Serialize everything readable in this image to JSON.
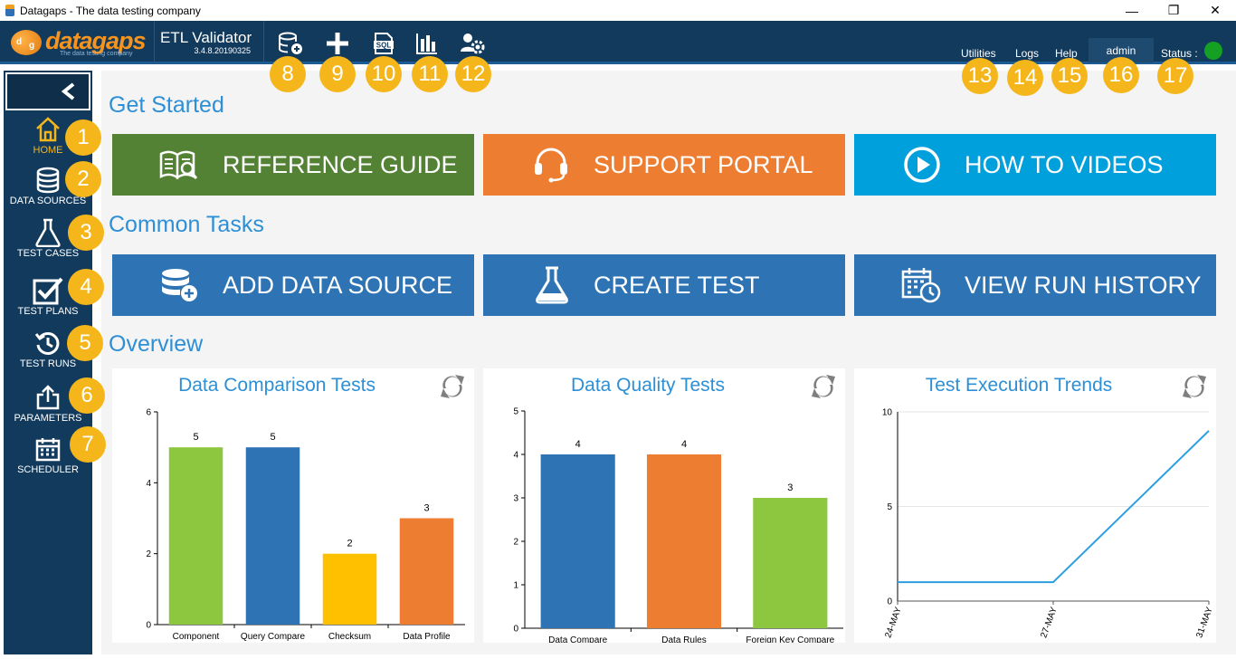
{
  "window": {
    "title": "Datagaps - The data testing company",
    "minimize": "—",
    "restore": "❐",
    "close": "✕"
  },
  "header": {
    "logo_text": "datagaps",
    "logo_ball_d": "d",
    "logo_ball_g": "g",
    "logo_tagline": "The data testing company",
    "product_name": "ETL Validator",
    "version": "3.4.8.20190325",
    "tools": [
      {
        "name": "add-data-source-icon",
        "callout": "8"
      },
      {
        "name": "plus-icon",
        "callout": "9"
      },
      {
        "name": "sql-icon",
        "callout": "10"
      },
      {
        "name": "bar-chart-icon",
        "callout": "11"
      },
      {
        "name": "user-settings-icon",
        "callout": "12"
      }
    ],
    "sql_label": "SQL",
    "links": {
      "utilities": "Utilities",
      "logs": "Logs",
      "help": "Help",
      "admin": "admin",
      "status": "Status :"
    },
    "link_callouts": [
      "13",
      "14",
      "15",
      "16",
      "17"
    ],
    "status_color": "#14a023"
  },
  "sidebar": {
    "collapse_icon": "chevron-left-icon",
    "items": [
      {
        "label": "HOME",
        "icon": "home-icon",
        "callout": "1",
        "active": true
      },
      {
        "label": "DATA SOURCES",
        "icon": "database-icon",
        "callout": "2"
      },
      {
        "label": "TEST CASES",
        "icon": "flask-icon",
        "callout": "3"
      },
      {
        "label": "TEST PLANS",
        "icon": "checkbox-icon",
        "callout": "4"
      },
      {
        "label": "TEST RUNS",
        "icon": "history-icon",
        "callout": "5"
      },
      {
        "label": "PARAMETERS",
        "icon": "export-icon",
        "callout": "6"
      },
      {
        "label": "SCHEDULER",
        "icon": "calendar-icon",
        "callout": "7"
      }
    ]
  },
  "main": {
    "get_started_title": "Get Started",
    "common_tasks_title": "Common Tasks",
    "overview_title": "Overview",
    "get_started_tiles": [
      {
        "label": "REFERENCE GUIDE",
        "color": "#548235"
      },
      {
        "label": "SUPPORT PORTAL",
        "color": "#ed7d31"
      },
      {
        "label": "HOW TO VIDEOS",
        "color": "#00a0dc"
      }
    ],
    "common_tasks_tiles": [
      {
        "label": "ADD DATA SOURCE",
        "color": "#2e74b5"
      },
      {
        "label": "CREATE TEST",
        "color": "#2e74b5"
      },
      {
        "label": "VIEW RUN HISTORY",
        "color": "#2e74b5"
      }
    ]
  },
  "chart_data": [
    {
      "type": "bar",
      "title": "Data Comparison Tests",
      "categories": [
        "Component",
        "Query Compare",
        "Checksum",
        "Data Profile"
      ],
      "values": [
        5,
        5,
        2,
        3
      ],
      "colors": [
        "#8dc63f",
        "#2e74b5",
        "#ffc000",
        "#ed7d31"
      ],
      "ylim": [
        0,
        6
      ],
      "yticks": [
        0,
        2,
        4,
        6
      ]
    },
    {
      "type": "bar",
      "title": "Data Quality Tests",
      "categories": [
        "Data Compare",
        "Data Rules",
        "Foreign Key Compare"
      ],
      "values": [
        4,
        4,
        3
      ],
      "colors": [
        "#2e74b5",
        "#ed7d31",
        "#8dc63f"
      ],
      "ylim": [
        0,
        5
      ],
      "yticks": [
        0,
        1,
        2,
        3,
        4,
        5
      ]
    },
    {
      "type": "line",
      "title": "Test Execution Trends",
      "x": [
        "24-MAY",
        "27-MAY",
        "31-MAY"
      ],
      "values": [
        1,
        1,
        9
      ],
      "color": "#2d9fe0",
      "ylim": [
        0,
        10
      ],
      "yticks": [
        0,
        5,
        10
      ],
      "grid": true
    }
  ]
}
